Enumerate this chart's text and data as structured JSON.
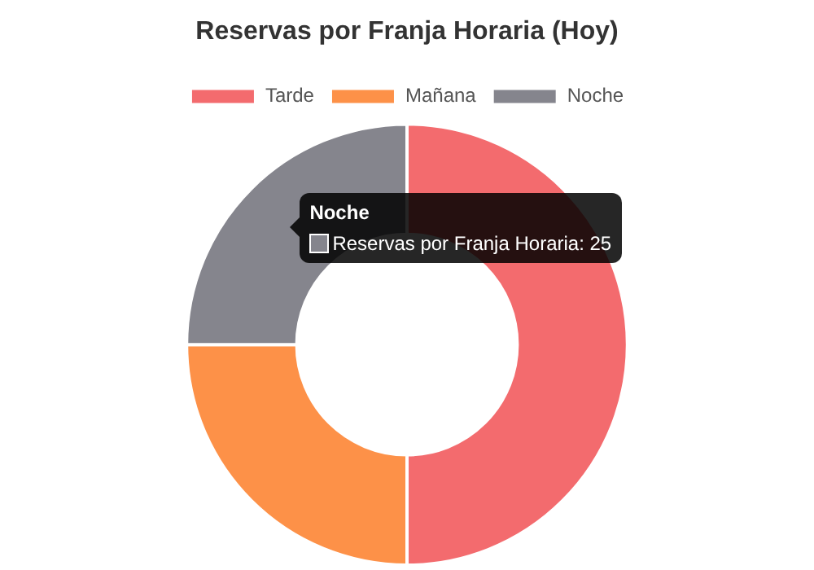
{
  "chart_data": {
    "type": "donut",
    "title": "Reservas por Franja Horaria (Hoy)",
    "categories": [
      "Tarde",
      "Mañana",
      "Noche"
    ],
    "values": [
      50,
      25,
      25
    ],
    "colors": [
      "#f36b6e",
      "#fd9148",
      "#85858d"
    ],
    "legend": "top",
    "annotations": [
      {
        "text": "Reservas por Franja Horaria: 25",
        "x": "Noche"
      }
    ]
  }
}
